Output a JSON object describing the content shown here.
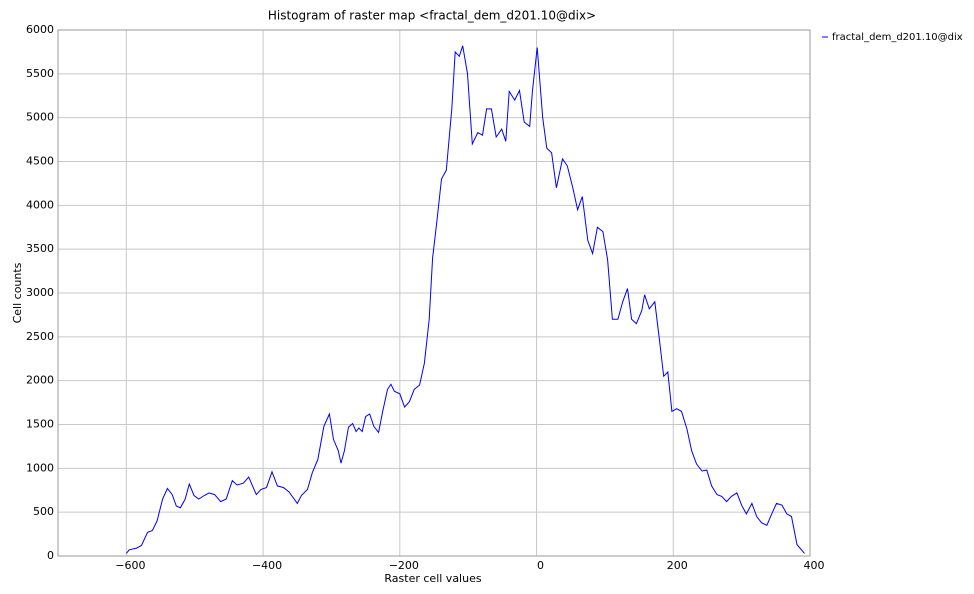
{
  "chart_data": {
    "type": "line",
    "title": "Histogram of raster map <fractal_dem_d201.10@dix>",
    "x_label": "Raster cell values",
    "y_label": "Cell counts",
    "x": [
      -600,
      -596,
      -585,
      -578,
      -569,
      -562,
      -555,
      -547,
      -540,
      -533,
      -527,
      -521,
      -514,
      -508,
      -501,
      -494,
      -486,
      -479,
      -471,
      -462,
      -454,
      -445,
      -438,
      -429,
      -421,
      -410,
      -403,
      -395,
      -387,
      -379,
      -370,
      -362,
      -350,
      -344,
      -335,
      -328,
      -320,
      -311,
      -303,
      -297,
      -290,
      -286,
      -281,
      -275,
      -269,
      -264,
      -260,
      -255,
      -250,
      -244,
      -238,
      -231,
      -225,
      -218,
      -213,
      -208,
      -200,
      -193,
      -186,
      -179,
      -171,
      -164,
      -157,
      -152,
      -146,
      -139,
      -132,
      -124,
      -119,
      -113,
      -108,
      -101,
      -94,
      -86,
      -79,
      -73,
      -66,
      -59,
      -51,
      -45,
      -40,
      -32,
      -25,
      -18,
      -10,
      -6,
      1,
      9,
      15,
      22,
      29,
      38,
      45,
      53,
      60,
      67,
      75,
      82,
      89,
      97,
      104,
      111,
      119,
      126,
      133,
      139,
      146,
      154,
      158,
      165,
      173,
      180,
      186,
      192,
      198,
      205,
      212,
      220,
      227,
      234,
      242,
      249,
      256,
      264,
      271,
      278,
      285,
      293,
      300,
      307,
      315,
      322,
      329,
      337,
      344,
      351,
      359,
      366,
      373,
      381,
      392
    ],
    "series": [
      {
        "name": "fractal_dem_d201.10@dix",
        "color": "#0000ff",
        "values": [
          30,
          70,
          90,
          120,
          270,
          290,
          400,
          650,
          770,
          700,
          570,
          550,
          650,
          820,
          690,
          650,
          690,
          720,
          700,
          620,
          650,
          860,
          810,
          830,
          900,
          700,
          760,
          780,
          960,
          800,
          780,
          730,
          600,
          690,
          760,
          950,
          1100,
          1480,
          1620,
          1330,
          1200,
          1060,
          1200,
          1470,
          1510,
          1420,
          1460,
          1420,
          1590,
          1620,
          1480,
          1410,
          1650,
          1900,
          1960,
          1880,
          1850,
          1700,
          1760,
          1900,
          1950,
          2200,
          2700,
          3400,
          3800,
          4300,
          4400,
          5100,
          5750,
          5700,
          5820,
          5500,
          4700,
          4830,
          4800,
          5100,
          5100,
          4780,
          4870,
          4730,
          5300,
          5200,
          5310,
          4950,
          4900,
          5300,
          5800,
          5000,
          4650,
          4600,
          4200,
          4530,
          4450,
          4200,
          3950,
          4100,
          3600,
          3450,
          3750,
          3700,
          3380,
          2700,
          2700,
          2900,
          3050,
          2700,
          2650,
          2800,
          2980,
          2820,
          2900,
          2450,
          2050,
          2100,
          1650,
          1680,
          1650,
          1450,
          1200,
          1050,
          970,
          980,
          800,
          700,
          680,
          620,
          680,
          720,
          580,
          480,
          600,
          450,
          380,
          350,
          480,
          600,
          580,
          480,
          450,
          130,
          30
        ]
      }
    ],
    "xlim": [
      -700,
      400
    ],
    "xticks": [
      {
        "value": -600,
        "label": "−600"
      },
      {
        "value": -400,
        "label": "−400"
      },
      {
        "value": -200,
        "label": "−200"
      },
      0,
      200,
      400
    ],
    "ylim": [
      0,
      6000
    ],
    "yticks": [
      0,
      500,
      1000,
      1500,
      2000,
      2500,
      3000,
      3500,
      4000,
      4500,
      5000,
      5500,
      6000
    ],
    "grid": true,
    "legend": "right"
  }
}
